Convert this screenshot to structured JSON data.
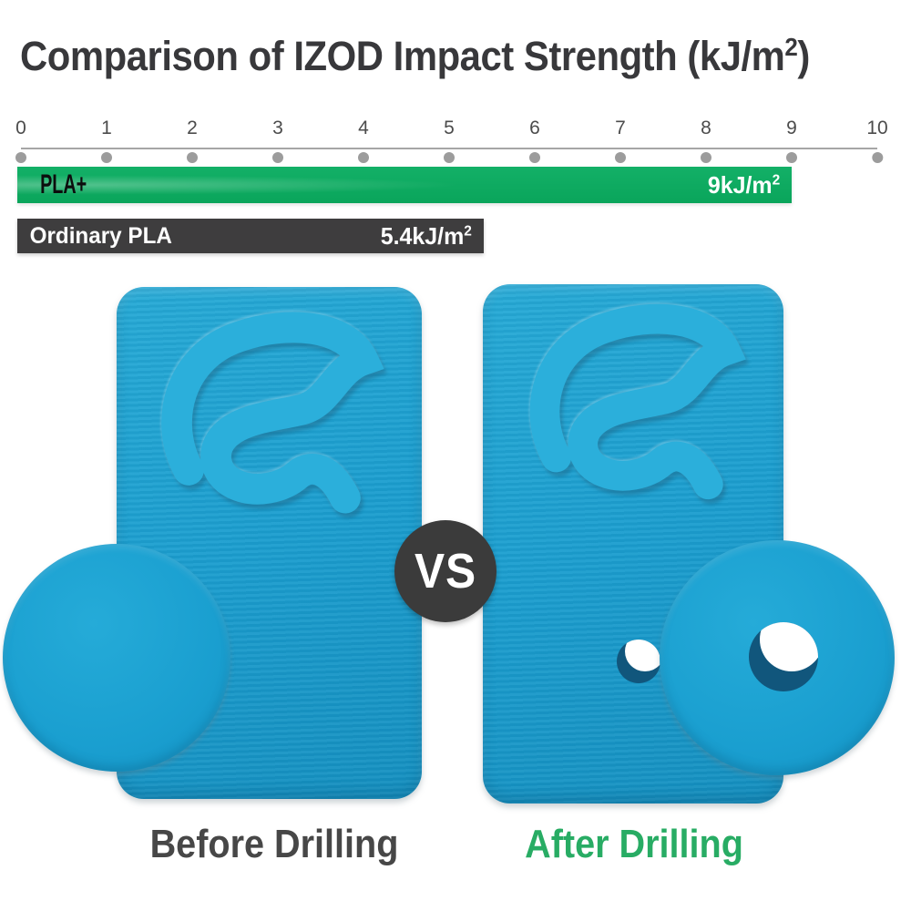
{
  "header": {
    "title_prefix": "Comparison of IZOD Impact Strength (kJ/m",
    "title_sup": "2",
    "title_suffix": ")"
  },
  "chart_data": {
    "type": "bar",
    "orientation": "horizontal",
    "title": "Comparison of IZOD Impact Strength (kJ/m²)",
    "unit": "kJ/m²",
    "categories": [
      "PLA+",
      "Ordinary PLA"
    ],
    "values": [
      9,
      5.4
    ],
    "series": [
      {
        "name": "PLA+",
        "value": 9,
        "value_label": "9kJ/m²",
        "color": "#0fae63"
      },
      {
        "name": "Ordinary PLA",
        "value": 5.4,
        "value_label": "5.4kJ/m²",
        "color": "#3e3d3e"
      }
    ],
    "axis": {
      "min": 0,
      "max": 10,
      "tick_step": 1,
      "ticks": [
        0,
        1,
        2,
        3,
        4,
        5,
        6,
        7,
        8,
        9,
        10
      ]
    },
    "grid": false,
    "legend": false
  },
  "bars": {
    "pla_plus": {
      "label": "PLA+",
      "value_prefix": "9kJ/m",
      "value_sup": "2"
    },
    "ordinary": {
      "label": "Ordinary PLA",
      "value_prefix": "5.4kJ/m",
      "value_sup": "2"
    }
  },
  "comparison": {
    "vs": "VS",
    "before_label": "Before Drilling",
    "after_label": "After Drilling",
    "left_sample_icon": "leaf-e-logo",
    "right_sample_icon": "leaf-e-logo"
  },
  "colors": {
    "green": "#0fae63",
    "dark": "#3e3d3e",
    "blue": "#1b9ecf",
    "blue_light": "#2bafdb",
    "hole_wall": "#11567c",
    "after_green": "#28ac64",
    "before_gray": "#474747",
    "axis_gray": "#9c9c9c"
  }
}
